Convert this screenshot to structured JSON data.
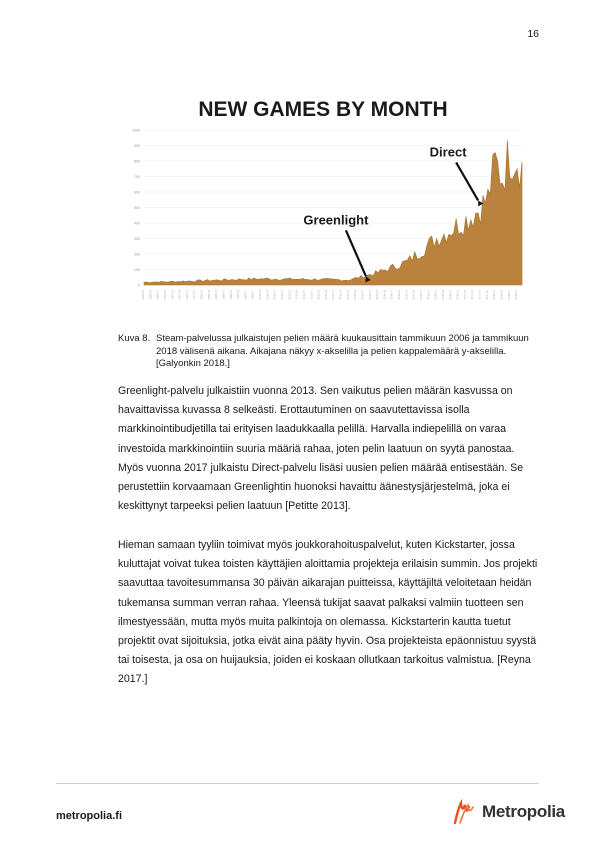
{
  "page": {
    "number": "16"
  },
  "figure": {
    "chart_data": {
      "type": "area",
      "title": "NEW GAMES BY MONTH",
      "xlabel": "",
      "ylabel": "",
      "y_ticks": [
        "0",
        "100",
        "200",
        "300",
        "400",
        "500",
        "600",
        "700",
        "800",
        "900",
        "1000"
      ],
      "ylim": [
        0,
        1000
      ],
      "x_range": [
        "2006-01",
        "2018-12"
      ],
      "grid": true,
      "color": "#b9823f",
      "annotations": [
        {
          "text": "Greenlight",
          "x": "2013-08",
          "y": 30
        },
        {
          "text": "Direct",
          "x": "2017-06",
          "y": 520
        }
      ],
      "series": [
        {
          "x": [
            "2006",
            "2007",
            "2008",
            "2009",
            "2010",
            "2011",
            "2012",
            "2013",
            "2014",
            "2015",
            "2016",
            "2017-01",
            "2017-04",
            "2017-07",
            "2017-10",
            "2018-01",
            "2018-04",
            "2018-07",
            "2018-10",
            "2018-12"
          ],
          "values": [
            18,
            22,
            28,
            35,
            40,
            38,
            36,
            32,
            80,
            150,
            300,
            420,
            450,
            500,
            560,
            780,
            700,
            850,
            820,
            760
          ]
        }
      ]
    }
  },
  "caption": {
    "label": "Kuva 8.",
    "text": "Steam-palvelussa julkaistujen pelien määrä kuukausittain tammikuun 2006 ja tammikuun 2018 välisenä aikana. Aikajana näkyy x-akselilla ja pelien kappalemäärä y-akselilla. [Galyonkin 2018.]"
  },
  "body": {
    "paragraph_1": "Greenlight-palvelu julkaistiin vuonna 2013. Sen vaikutus pelien määrän kasvussa on havaittavissa kuvassa 8 selkeästi. Erottautuminen on saavutettavissa isolla markkinointibudjetilla tai erityisen laadukkaalla pelillä. Harvalla indiepelillä on varaa investoida markkinointiin suuria määriä rahaa, joten pelin laatuun on syytä panostaa. Myös vuonna 2017 julkaistu Direct-palvelu lisäsi uusien pelien määrää entisestään. Se perustettiin korvaamaan Greenlightin huonoksi havaittu äänestysjärjestelmä, joka ei keskittynyt tarpeeksi pelien laatuun [Petitte 2013].",
    "paragraph_2": "Hieman samaan tyyliin toimivat myös joukkorahoituspalvelut, kuten Kickstarter, jossa kuluttajat voivat tukea toisten käyttäjien aloittamia projekteja erilaisin summin. Jos projekti saavuttaa tavoitesummansa 30 päivän aikarajan puitteissa, käyttäjiltä veloitetaan heidän tukemansa summan verran rahaa. Yleensä tukijat saavat palkaksi valmiin tuotteen sen ilmestyessään, mutta myös muita palkintoja on olemassa. Kickstarterin kautta tuetut projektit ovat sijoituksia, jotka eivät aina pääty hyvin. Osa projekteista epäonnistuu syystä tai toisesta, ja osa on huijauksia, joiden ei koskaan ollutkaan tarkoitus valmistua. [Reyna 2017.]"
  },
  "footer": {
    "site": "metropolia.fi",
    "logo_text": "Metropolia",
    "logo_color": "#e8511f"
  }
}
